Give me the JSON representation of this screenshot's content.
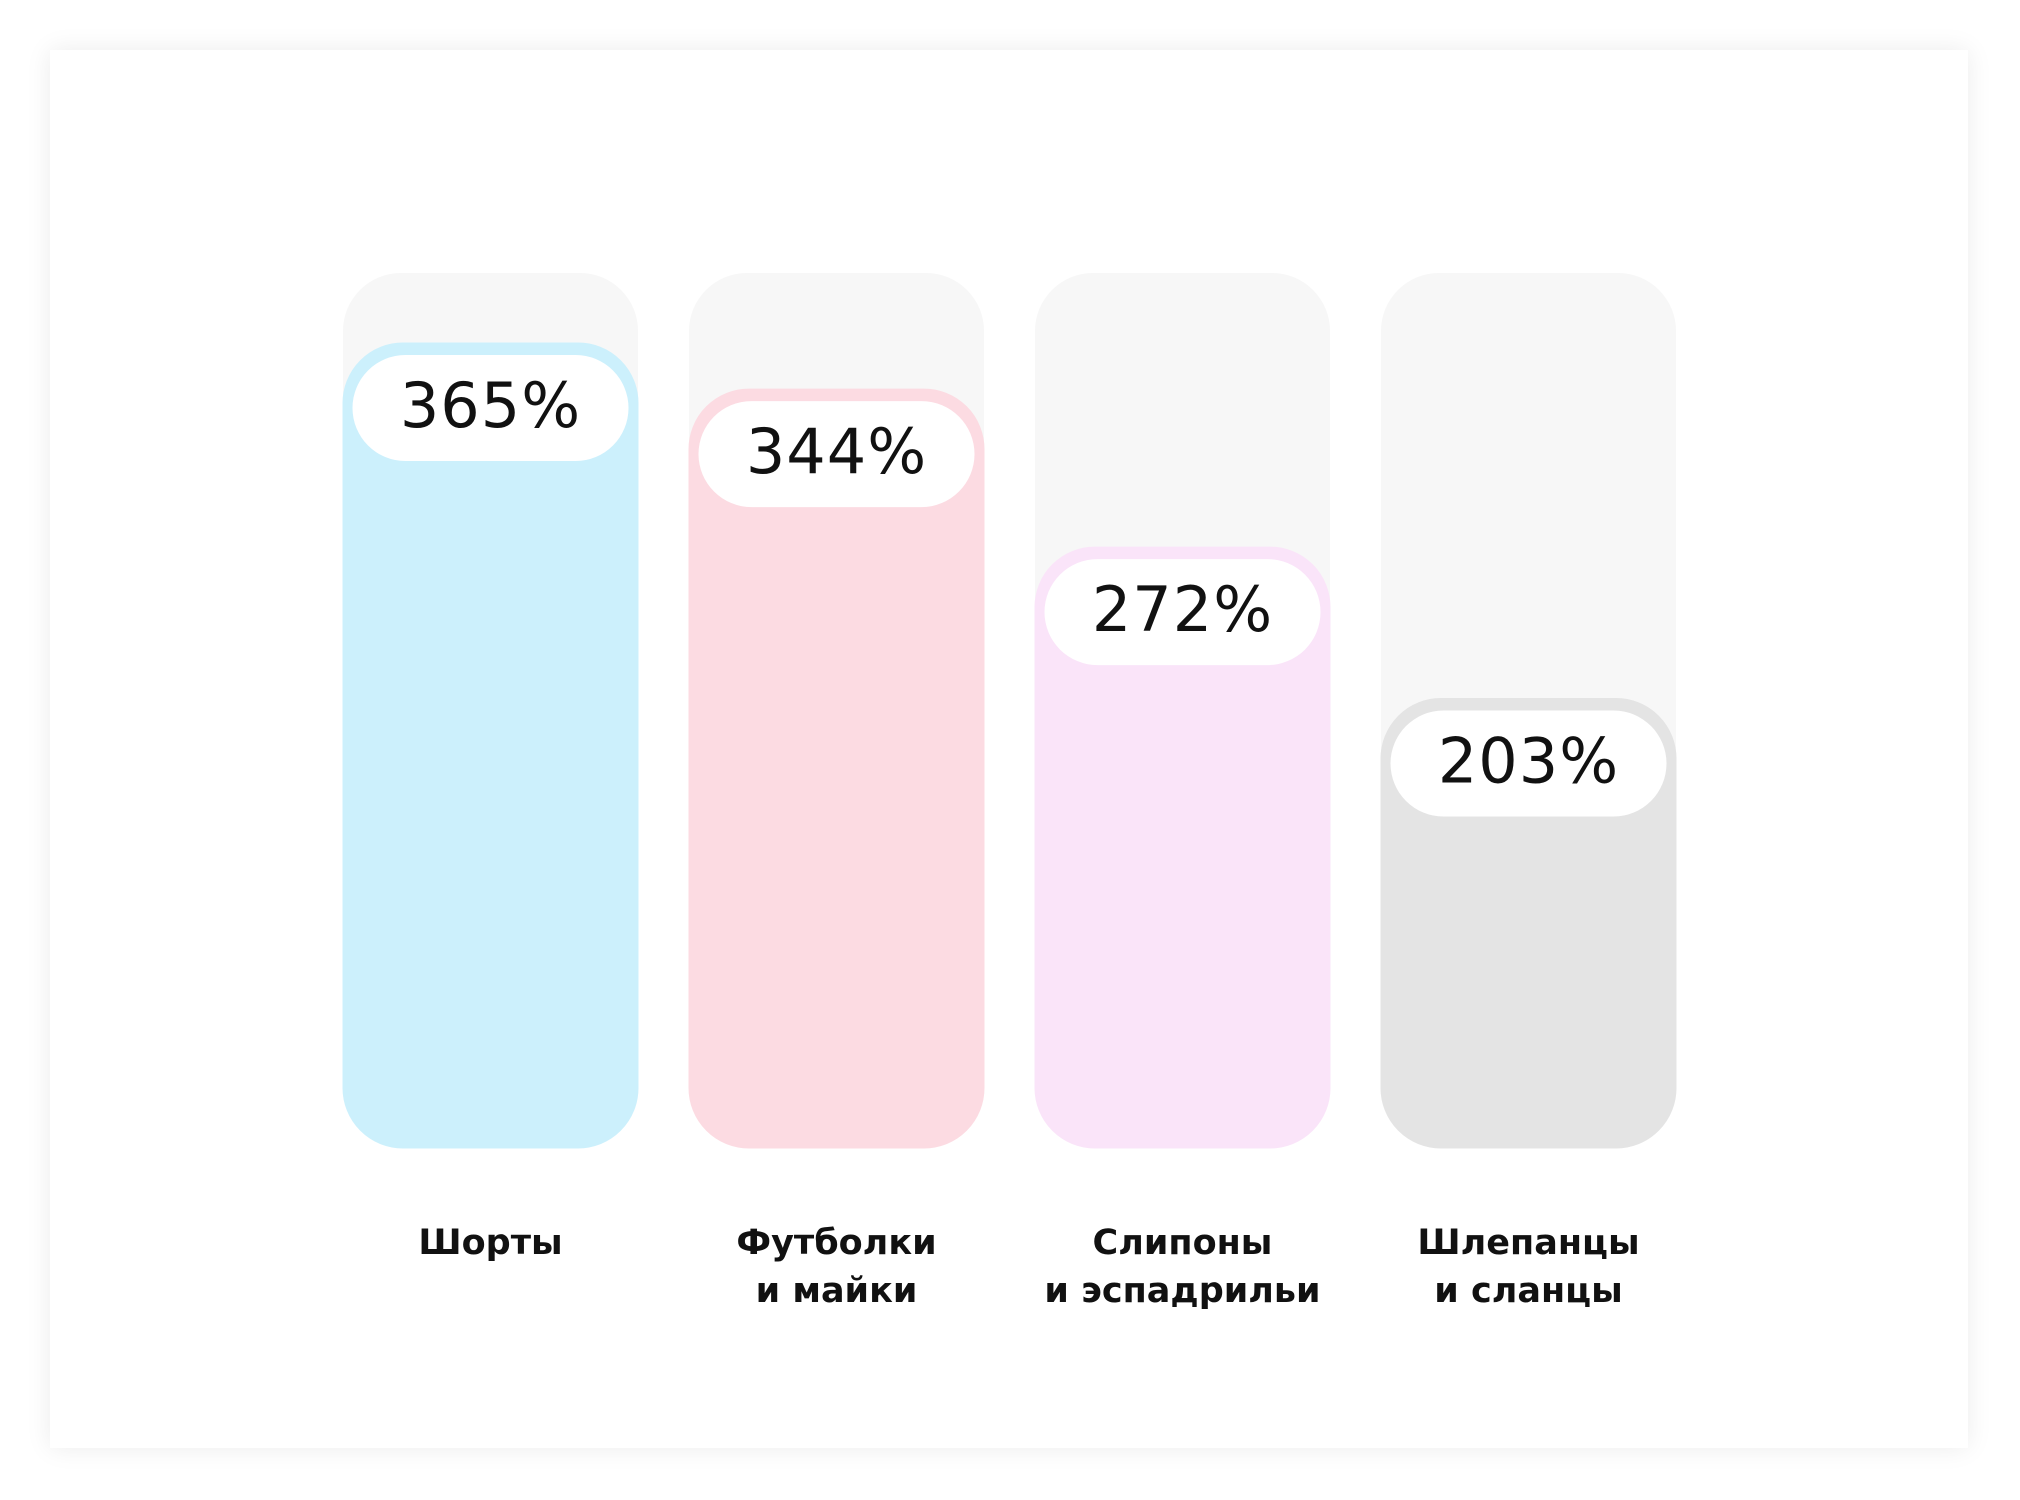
{
  "chart_data": {
    "type": "bar",
    "categories": [
      "Шорты",
      "Футболки\nи майки",
      "Слипоны\nи эспадрильи",
      "Шлепанцы\nи сланцы"
    ],
    "values": [
      365,
      344,
      272,
      203
    ],
    "value_labels": [
      "365%",
      "344%",
      "272%",
      "203%"
    ],
    "colors": [
      "#d7f1fc",
      "#fde0e5",
      "#f8e8f7",
      "#e6e6e6"
    ]
  }
}
